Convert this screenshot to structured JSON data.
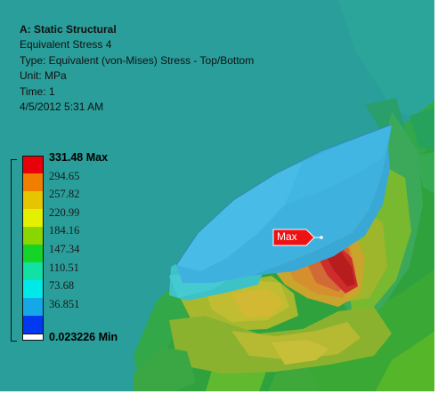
{
  "title_block": {
    "analysis": "A: Static Structural",
    "result_name": "Equivalent Stress 4",
    "type": "Type: Equivalent (von-Mises) Stress - Top/Bottom",
    "unit": "Unit: MPa",
    "time": "Time: 1",
    "date": "4/5/2012 5:31 AM"
  },
  "legend": {
    "max_label": "331.48 Max",
    "levels": [
      "294.65",
      "257.82",
      "220.99",
      "184.16",
      "147.34",
      "110.51",
      "73.68",
      "36.851"
    ],
    "min_label": "0.023226 Min",
    "colors": [
      "#e8000b",
      "#f07f00",
      "#e5c400",
      "#e3f000",
      "#89d600",
      "#14d428",
      "#12e1a6",
      "#00e9e9",
      "#14a8e6",
      "#0039f0"
    ],
    "min_color": "#ffffff"
  },
  "probe": {
    "max_tag": "Max",
    "color": "#ee1212"
  }
}
